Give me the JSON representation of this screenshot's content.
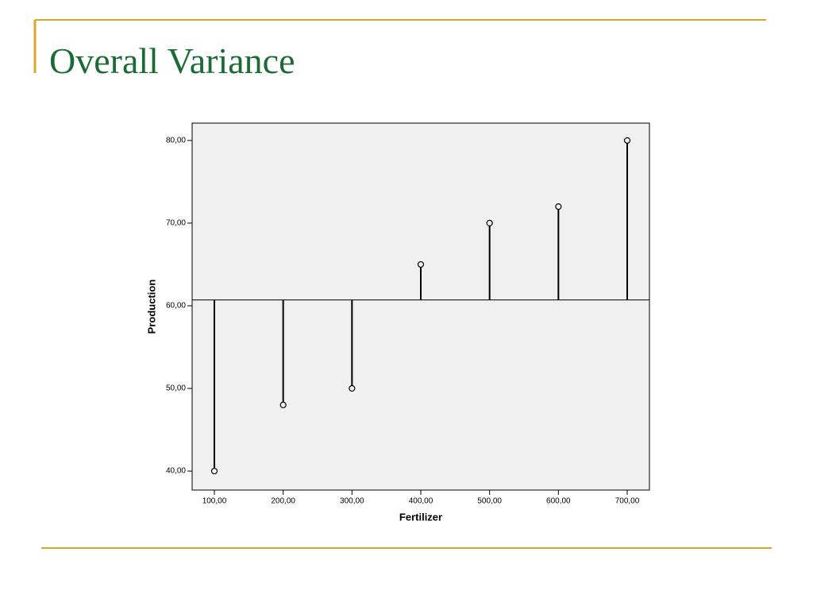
{
  "slide": {
    "title": "Overall Variance"
  },
  "chart_data": {
    "type": "scatter",
    "x_label": "Fertilizer",
    "y_label": "Production",
    "x": [
      100,
      200,
      300,
      400,
      500,
      600,
      700
    ],
    "values": [
      40,
      48,
      50,
      65,
      70,
      72,
      80
    ],
    "color": "#000000",
    "reference_y": 60.7,
    "xlim": [
      67.7,
      732.3
    ],
    "ylim": [
      37.7,
      82.1
    ],
    "xticks": [
      {
        "value": 100,
        "label": "100,00"
      },
      {
        "value": 200,
        "label": "200,00"
      },
      {
        "value": 300,
        "label": "300,00"
      },
      {
        "value": 400,
        "label": "400,00"
      },
      {
        "value": 500,
        "label": "500,00"
      },
      {
        "value": 600,
        "label": "600,00"
      },
      {
        "value": 700,
        "label": "700,00"
      }
    ],
    "yticks": [
      {
        "value": 40,
        "label": "40,00"
      },
      {
        "value": 50,
        "label": "50,00"
      },
      {
        "value": 60,
        "label": "60,00"
      },
      {
        "value": 70,
        "label": "70,00"
      },
      {
        "value": 80,
        "label": "80,00"
      }
    ]
  }
}
